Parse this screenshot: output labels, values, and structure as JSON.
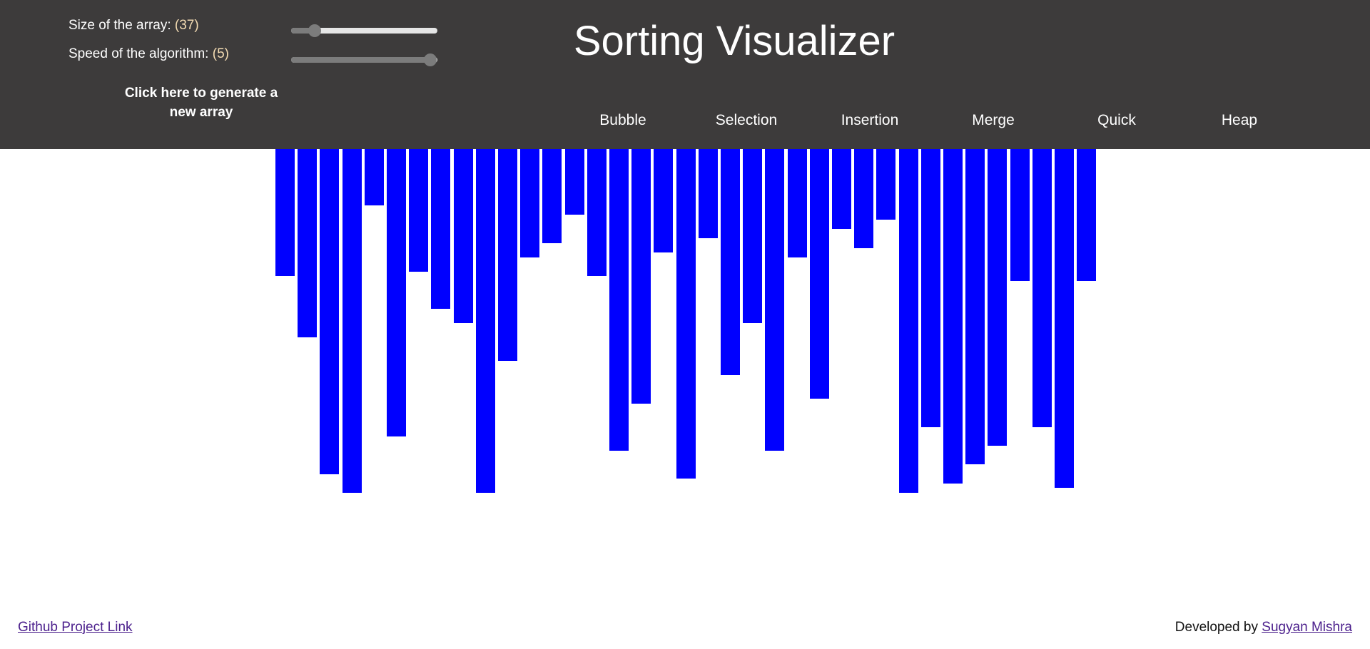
{
  "header": {
    "title": "Sorting Visualizer",
    "size_label": "Size of the array:",
    "size_value": "(37)",
    "speed_label": "Speed of the algorithm:",
    "speed_value": "(5)",
    "size_slider_fraction": 0.16,
    "speed_slider_fraction": 0.95,
    "generate_label": "Click here to generate a new array"
  },
  "algorithms": [
    {
      "label": "Bubble"
    },
    {
      "label": "Selection"
    },
    {
      "label": "Insertion"
    },
    {
      "label": "Merge"
    },
    {
      "label": "Quick"
    },
    {
      "label": "Heap"
    }
  ],
  "array": {
    "size": 37,
    "bar_color": "#0000ff",
    "values": [
      27,
      40,
      69,
      73,
      12,
      61,
      26,
      34,
      37,
      73,
      45,
      23,
      20,
      14,
      27,
      64,
      54,
      22,
      70,
      19,
      48,
      37,
      64,
      23,
      53,
      17,
      21,
      15,
      73,
      59,
      71,
      67,
      63,
      28,
      59,
      72,
      28
    ],
    "max_value": 73
  },
  "footer": {
    "github_link": "Github Project Link",
    "developed_by": "Developed by",
    "author_link": "Sugyan Mishra"
  },
  "colors": {
    "header_bg": "#3d3b3b",
    "value_accent": "#f4dcb3",
    "link": "#4b1f8c"
  }
}
